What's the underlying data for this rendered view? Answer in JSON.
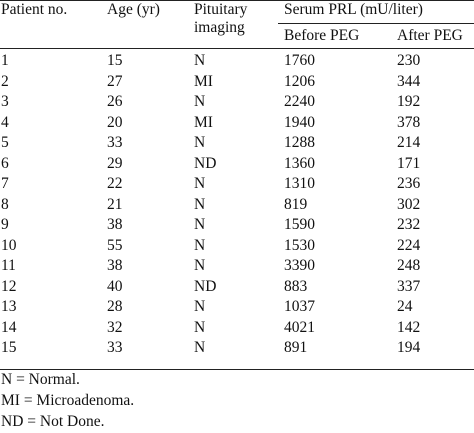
{
  "table": {
    "headers": {
      "patient_no": "Patient no.",
      "age": "Age (yr)",
      "pituitary_line1": "Pituitary",
      "pituitary_line2": "imaging",
      "serum_prl": "Serum PRL (mU/liter)",
      "before_peg": "Before PEG",
      "after_peg": "After PEG"
    },
    "rows": [
      {
        "patient": "1",
        "age": "15",
        "imaging": "N",
        "before": "1760",
        "after": "230"
      },
      {
        "patient": "2",
        "age": "27",
        "imaging": "MI",
        "before": "1206",
        "after": "344"
      },
      {
        "patient": "3",
        "age": "26",
        "imaging": "N",
        "before": "2240",
        "after": "192"
      },
      {
        "patient": "4",
        "age": "20",
        "imaging": "MI",
        "before": "1940",
        "after": "378"
      },
      {
        "patient": "5",
        "age": "33",
        "imaging": "N",
        "before": "1288",
        "after": "214"
      },
      {
        "patient": "6",
        "age": "29",
        "imaging": "ND",
        "before": "1360",
        "after": "171"
      },
      {
        "patient": "7",
        "age": "22",
        "imaging": "N",
        "before": "1310",
        "after": "236"
      },
      {
        "patient": "8",
        "age": "21",
        "imaging": "N",
        "before": "819",
        "after": "302"
      },
      {
        "patient": "9",
        "age": "38",
        "imaging": "N",
        "before": "1590",
        "after": "232"
      },
      {
        "patient": "10",
        "age": "55",
        "imaging": "N",
        "before": "1530",
        "after": "224"
      },
      {
        "patient": "11",
        "age": "38",
        "imaging": "N",
        "before": "3390",
        "after": "248"
      },
      {
        "patient": "12",
        "age": "40",
        "imaging": "ND",
        "before": "883",
        "after": "337"
      },
      {
        "patient": "13",
        "age": "28",
        "imaging": "N",
        "before": "1037",
        "after": "24"
      },
      {
        "patient": "14",
        "age": "32",
        "imaging": "N",
        "before": "4021",
        "after": "142"
      },
      {
        "patient": "15",
        "age": "33",
        "imaging": "N",
        "before": "891",
        "after": "194"
      }
    ],
    "footnotes": [
      "N = Normal.",
      "MI = Microadenoma.",
      "ND = Not Done."
    ]
  }
}
